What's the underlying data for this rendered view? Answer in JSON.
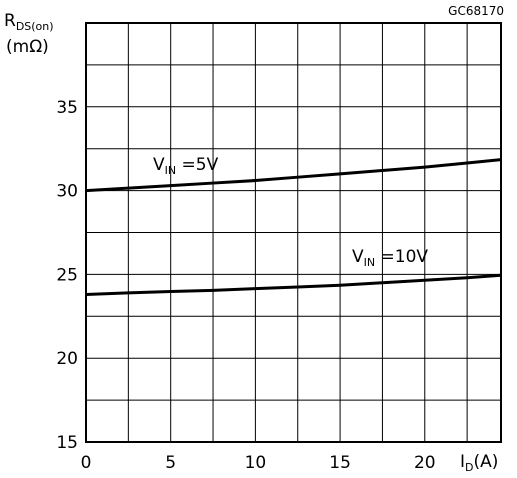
{
  "chart_data": {
    "type": "line",
    "figure_code": "GC68170",
    "xlabel": {
      "main": "I",
      "sub": "D",
      "unit": "(A)"
    },
    "ylabel": {
      "main": "R",
      "sub": "DS(on)",
      "unit": "(mΩ)"
    },
    "xlim": [
      0,
      24.5
    ],
    "ylim": [
      15,
      40
    ],
    "x_major_ticks": [
      0,
      5,
      10,
      15,
      20
    ],
    "x_tick_labels": [
      "0",
      "5",
      "10",
      "15",
      "20"
    ],
    "x_grid_step": 2.5,
    "y_major_ticks": [
      15,
      20,
      25,
      30,
      35
    ],
    "y_tick_labels": [
      "15",
      "20",
      "25",
      "30",
      "35"
    ],
    "y_grid_step": 2.5,
    "grid": true,
    "series": [
      {
        "name": "VIN = 5V",
        "label": {
          "main": "V",
          "sub": "IN",
          "text": " =5V"
        },
        "x": [
          0,
          2.5,
          5,
          7.5,
          10,
          12.5,
          15,
          17.5,
          20,
          22.5,
          24.5
        ],
        "y": [
          30.0,
          30.15,
          30.3,
          30.45,
          30.6,
          30.8,
          31.0,
          31.2,
          31.4,
          31.65,
          31.85
        ]
      },
      {
        "name": "VIN = 10V",
        "label": {
          "main": "V",
          "sub": "IN",
          "text": " =10V"
        },
        "x": [
          0,
          2.5,
          5,
          7.5,
          10,
          12.5,
          15,
          17.5,
          20,
          22.5,
          24.5
        ],
        "y": [
          23.8,
          23.9,
          23.98,
          24.05,
          24.15,
          24.25,
          24.35,
          24.5,
          24.65,
          24.8,
          24.95
        ]
      }
    ]
  }
}
